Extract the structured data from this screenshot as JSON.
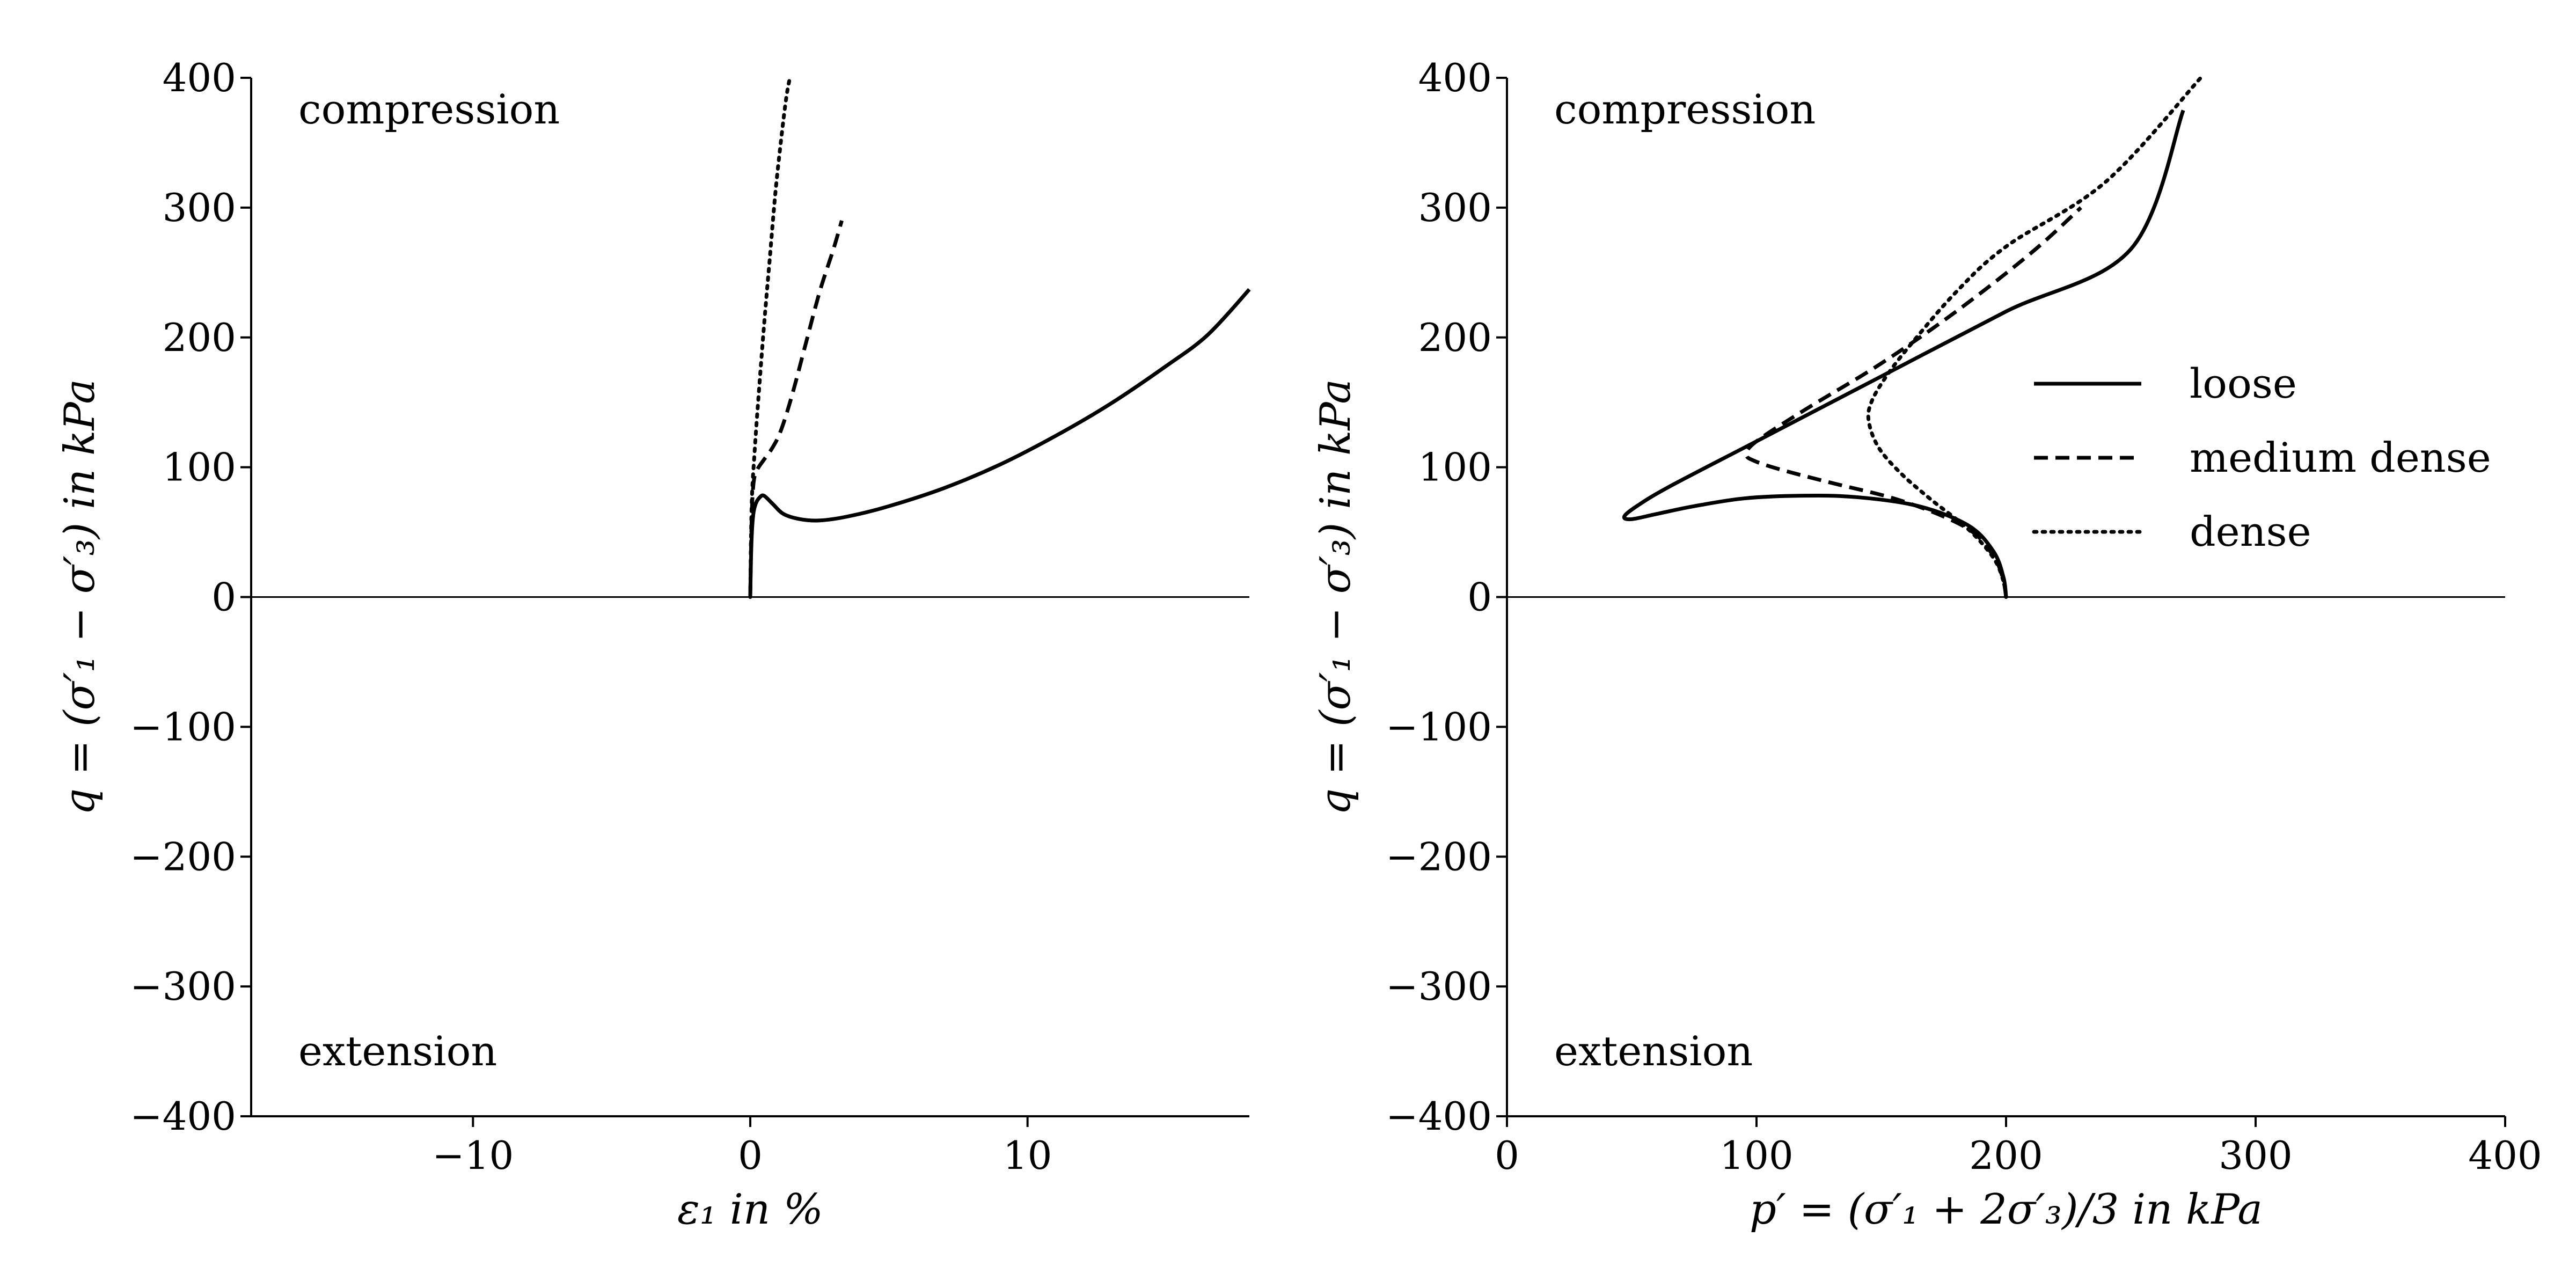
{
  "chart_data": [
    {
      "type": "line",
      "xlabel": "ε₁ in %",
      "ylabel": "q = (σ′₁ − σ′₃) in kPa",
      "xlim": [
        -18,
        18
      ],
      "ylim": [
        -400,
        400
      ],
      "xticks": [
        -10,
        0,
        10
      ],
      "yticks": [
        -400,
        -300,
        -200,
        -100,
        0,
        100,
        200,
        300,
        400
      ],
      "zero_line": true,
      "grid": false,
      "legend": false,
      "annotations": [
        "compression",
        "extension"
      ],
      "series": [
        {
          "name": "loose",
          "style": "solid",
          "points": [
            [
              0,
              0
            ],
            [
              0.04,
              40
            ],
            [
              0.1,
              62
            ],
            [
              0.2,
              72
            ],
            [
              0.35,
              77
            ],
            [
              0.5,
              78
            ],
            [
              0.8,
              72
            ],
            [
              1.2,
              64
            ],
            [
              1.8,
              60
            ],
            [
              2.5,
              59
            ],
            [
              3.5,
              62
            ],
            [
              5,
              70
            ],
            [
              7,
              84
            ],
            [
              9,
              102
            ],
            [
              11,
              124
            ],
            [
              13,
              149
            ],
            [
              15,
              178
            ],
            [
              16.5,
              202
            ],
            [
              18,
              237
            ]
          ]
        },
        {
          "name": "medium dense",
          "style": "dashed",
          "points": [
            [
              0,
              0
            ],
            [
              0.05,
              60
            ],
            [
              0.12,
              88
            ],
            [
              0.25,
              98
            ],
            [
              0.5,
              106
            ],
            [
              0.8,
              115
            ],
            [
              1.1,
              128
            ],
            [
              1.5,
              155
            ],
            [
              2.0,
              195
            ],
            [
              2.5,
              235
            ],
            [
              3.0,
              268
            ],
            [
              3.3,
              290
            ]
          ]
        },
        {
          "name": "dense",
          "style": "dotted",
          "points": [
            [
              0,
              0
            ],
            [
              0.05,
              70
            ],
            [
              0.15,
              110
            ],
            [
              0.3,
              155
            ],
            [
              0.5,
              210
            ],
            [
              0.7,
              260
            ],
            [
              0.9,
              310
            ],
            [
              1.1,
              350
            ],
            [
              1.3,
              385
            ],
            [
              1.45,
              402
            ]
          ]
        }
      ]
    },
    {
      "type": "line",
      "xlabel": "p′ = (σ′₁ + 2σ′₃)/3 in kPa",
      "ylabel": "q = (σ′₁ − σ′₃) in kPa",
      "xlim": [
        0,
        400
      ],
      "ylim": [
        -400,
        400
      ],
      "xticks": [
        0,
        100,
        200,
        300,
        400
      ],
      "yticks": [
        -400,
        -300,
        -200,
        -100,
        0,
        100,
        200,
        300,
        400
      ],
      "zero_line": true,
      "grid": false,
      "legend": "right",
      "annotations": [
        "compression",
        "extension"
      ],
      "series": [
        {
          "name": "loose",
          "style": "solid",
          "points": [
            [
              200,
              0
            ],
            [
              199,
              15
            ],
            [
              195,
              35
            ],
            [
              185,
              55
            ],
            [
              165,
              70
            ],
            [
              140,
              77
            ],
            [
              117,
              78
            ],
            [
              95,
              76
            ],
            [
              75,
              70
            ],
            [
              60,
              64
            ],
            [
              50,
              60
            ],
            [
              47,
              62
            ],
            [
              52,
              70
            ],
            [
              65,
              85
            ],
            [
              100,
              120
            ],
            [
              150,
              170
            ],
            [
              200,
              220
            ],
            [
              250,
              268
            ],
            [
              271,
              375
            ]
          ]
        },
        {
          "name": "medium dense",
          "style": "dashed",
          "points": [
            [
              200,
              0
            ],
            [
              199,
              12
            ],
            [
              196,
              28
            ],
            [
              188,
              48
            ],
            [
              175,
              62
            ],
            [
              155,
              76
            ],
            [
              130,
              88
            ],
            [
              110,
              98
            ],
            [
              99,
              105
            ],
            [
              96,
              110
            ],
            [
              100,
              120
            ],
            [
              120,
              145
            ],
            [
              150,
              180
            ],
            [
              180,
              220
            ],
            [
              210,
              265
            ],
            [
              230,
              300
            ]
          ]
        },
        {
          "name": "dense",
          "style": "dotted",
          "points": [
            [
              200,
              0
            ],
            [
              199,
              12
            ],
            [
              195,
              30
            ],
            [
              185,
              52
            ],
            [
              170,
              75
            ],
            [
              158,
              95
            ],
            [
              149,
              115
            ],
            [
              145,
              135
            ],
            [
              146,
              150
            ],
            [
              152,
              170
            ],
            [
              162,
              195
            ],
            [
              180,
              235
            ],
            [
              200,
              270
            ],
            [
              240,
              320
            ],
            [
              278,
              400
            ]
          ]
        }
      ],
      "legend_entries": [
        "loose",
        "medium dense",
        "dense"
      ]
    }
  ]
}
